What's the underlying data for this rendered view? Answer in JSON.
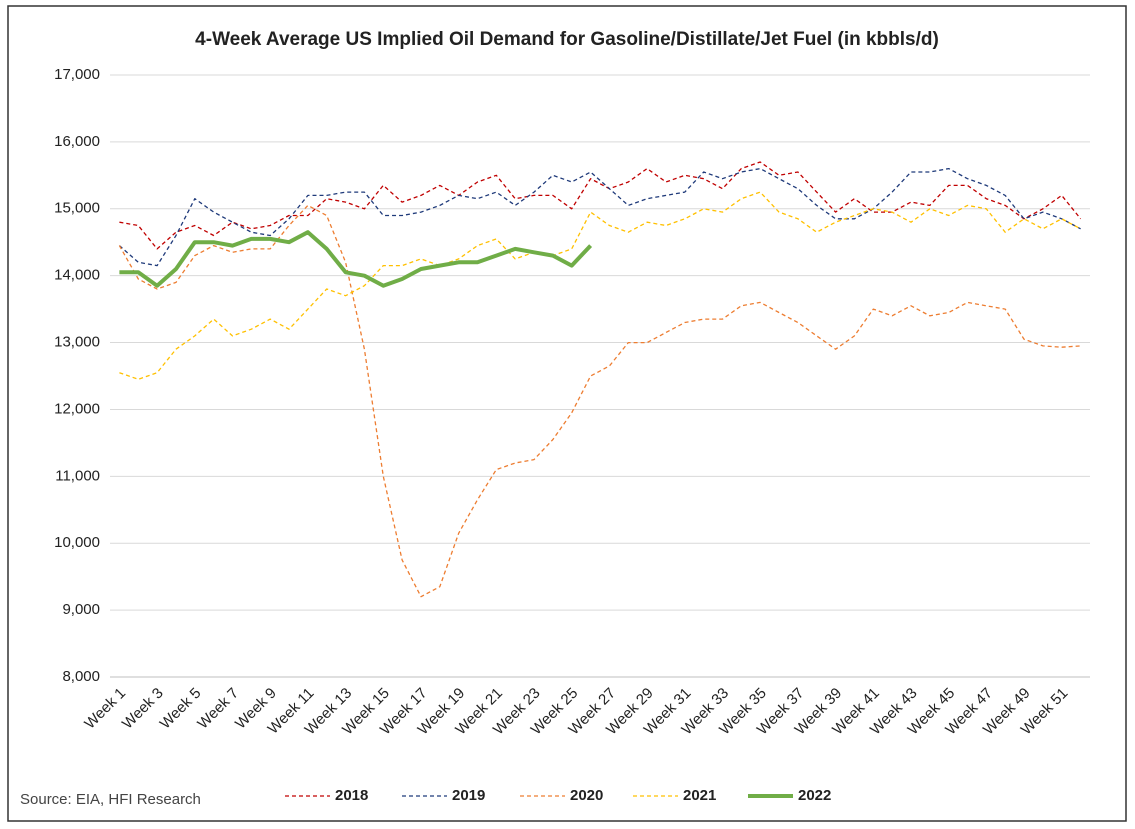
{
  "chart_data": {
    "type": "line",
    "title": "4-Week Average US Implied Oil Demand for Gasoline/Distillate/Jet Fuel (in kbbls/d)",
    "source": "Source: EIA, HFI Research",
    "categories": [
      "Week 1",
      null,
      "Week 3",
      null,
      "Week 5",
      null,
      "Week 7",
      null,
      "Week 9",
      null,
      "Week 11",
      null,
      "Week 13",
      null,
      "Week 15",
      null,
      "Week 17",
      null,
      "Week 19",
      null,
      "Week 21",
      null,
      "Week 23",
      null,
      "Week 25",
      null,
      "Week 27",
      null,
      "Week 29",
      null,
      "Week 31",
      null,
      "Week 33",
      null,
      "Week 35",
      null,
      "Week 37",
      null,
      "Week 39",
      null,
      "Week 41",
      null,
      "Week 43",
      null,
      "Week 45",
      null,
      "Week 47",
      null,
      "Week 49",
      null,
      "Week 51",
      null
    ],
    "ylim": [
      8000,
      17000
    ],
    "yticks": [
      {
        "value": 8000,
        "label": "8,000"
      },
      {
        "value": 9000,
        "label": "9,000"
      },
      {
        "value": 10000,
        "label": "10,000"
      },
      {
        "value": 11000,
        "label": "11,000"
      },
      {
        "value": 12000,
        "label": "12,000"
      },
      {
        "value": 13000,
        "label": "13,000"
      },
      {
        "value": 14000,
        "label": "14,000"
      },
      {
        "value": 15000,
        "label": "15,000"
      },
      {
        "value": 16000,
        "label": "16,000"
      },
      {
        "value": 17000,
        "label": "17,000"
      }
    ],
    "grid": true,
    "legend": "bottom",
    "series": [
      {
        "name": "2018",
        "color": "#c00000",
        "dashed": true,
        "values": [
          14800,
          14750,
          14400,
          14650,
          14750,
          14600,
          14800,
          14700,
          14750,
          14900,
          14900,
          15150,
          15100,
          15000,
          15350,
          15100,
          15200,
          15350,
          15200,
          15400,
          15500,
          15150,
          15200,
          15200,
          15000,
          15450,
          15300,
          15400,
          15600,
          15400,
          15500,
          15450,
          15300,
          15600,
          15700,
          15500,
          15550,
          15250,
          14950,
          15150,
          14950,
          14950,
          15100,
          15050,
          15350,
          15350,
          15150,
          15050,
          14850,
          15000,
          15200,
          14850
        ]
      },
      {
        "name": "2019",
        "color": "#1f3a7a",
        "dashed": true,
        "values": [
          14450,
          14200,
          14150,
          14600,
          15150,
          14950,
          14800,
          14650,
          14600,
          14850,
          15200,
          15200,
          15250,
          15250,
          14900,
          14900,
          14950,
          15050,
          15200,
          15150,
          15250,
          15050,
          15250,
          15500,
          15400,
          15550,
          15300,
          15050,
          15150,
          15200,
          15250,
          15550,
          15450,
          15550,
          15600,
          15450,
          15300,
          15050,
          14850,
          14850,
          15000,
          15250,
          15550,
          15550,
          15600,
          15450,
          15350,
          15200,
          14850,
          14950,
          14850,
          14700
        ]
      },
      {
        "name": "2020",
        "color": "#ed7d31",
        "dashed": true,
        "values": [
          14450,
          13950,
          13800,
          13900,
          14300,
          14450,
          14350,
          14400,
          14400,
          14750,
          15050,
          14900,
          14200,
          12900,
          11000,
          9750,
          9200,
          9350,
          10150,
          10650,
          11100,
          11200,
          11250,
          11550,
          11950,
          12500,
          12650,
          13000,
          13000,
          13150,
          13300,
          13350,
          13350,
          13550,
          13600,
          13450,
          13300,
          13100,
          12900,
          13100,
          13500,
          13400,
          13550,
          13400,
          13450,
          13600,
          13550,
          13500,
          13050,
          12950,
          12930,
          12950
        ]
      },
      {
        "name": "2021",
        "color": "#ffc000",
        "dashed": true,
        "values": [
          12550,
          12450,
          12550,
          12900,
          13100,
          13350,
          13100,
          13200,
          13350,
          13200,
          13500,
          13800,
          13700,
          13850,
          14150,
          14150,
          14250,
          14150,
          14250,
          14450,
          14550,
          14250,
          14350,
          14300,
          14400,
          14950,
          14750,
          14650,
          14800,
          14750,
          14850,
          15000,
          14950,
          15150,
          15250,
          14950,
          14850,
          14650,
          14800,
          14900,
          15000,
          14950,
          14800,
          15000,
          14900,
          15050,
          15000,
          14650,
          14850,
          14700,
          14850,
          14700
        ]
      },
      {
        "name": "2022",
        "color": "#70ad47",
        "dashed": false,
        "values": [
          14050,
          14050,
          13850,
          14100,
          14500,
          14500,
          14450,
          14550,
          14550,
          14500,
          14650,
          14400,
          14050,
          14000,
          13850,
          13950,
          14100,
          14150,
          14200,
          14200,
          14300,
          14400,
          14350,
          14300,
          14150,
          14450,
          null,
          null,
          null,
          null,
          null,
          null,
          null,
          null,
          null,
          null,
          null,
          null,
          null,
          null,
          null,
          null,
          null,
          null,
          null,
          null,
          null,
          null,
          null,
          null,
          null,
          null
        ]
      }
    ]
  }
}
